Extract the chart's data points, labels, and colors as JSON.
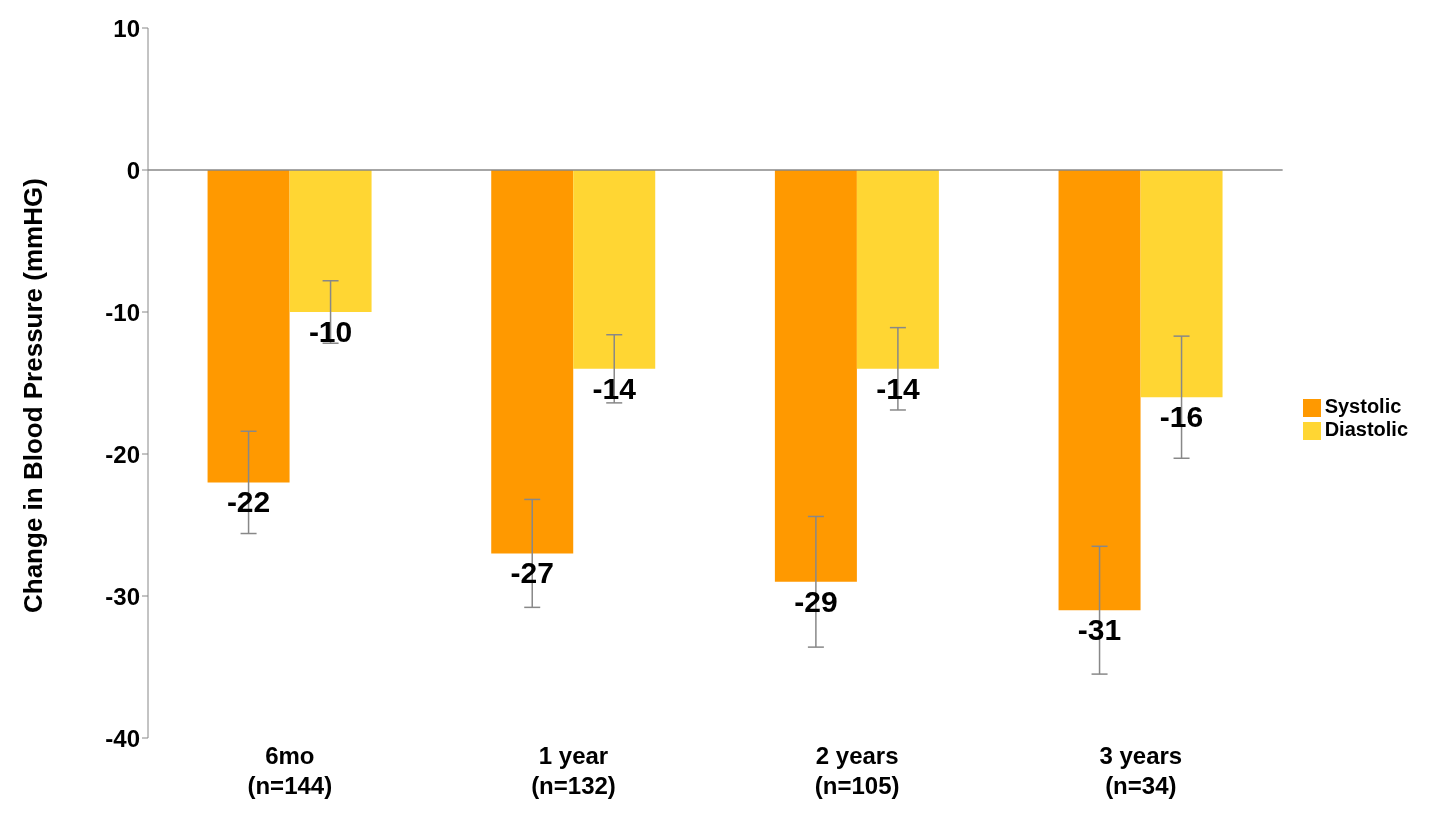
{
  "chart_data": {
    "type": "bar",
    "ylabel": "Change in Blood Pressure (mmHG)",
    "categories": [
      "6mo\n(n=144)",
      "1 year\n(n=132)",
      "2 years\n(n=105)",
      "3 years\n(n=34)"
    ],
    "series": [
      {
        "name": "Systolic",
        "color": "#ff9900",
        "values": [
          -22,
          -27,
          -29,
          -31
        ],
        "errors": [
          3.6,
          3.8,
          4.6,
          4.5
        ]
      },
      {
        "name": "Diastolic",
        "color": "#ffd633",
        "values": [
          -10,
          -14,
          -14,
          -16
        ],
        "errors": [
          2.2,
          2.4,
          2.9,
          4.3
        ]
      }
    ],
    "ylim": [
      -40,
      10
    ],
    "yticks": [
      -40,
      -30,
      -20,
      -10,
      0,
      10
    ],
    "legend": "right",
    "data_labels": true
  }
}
